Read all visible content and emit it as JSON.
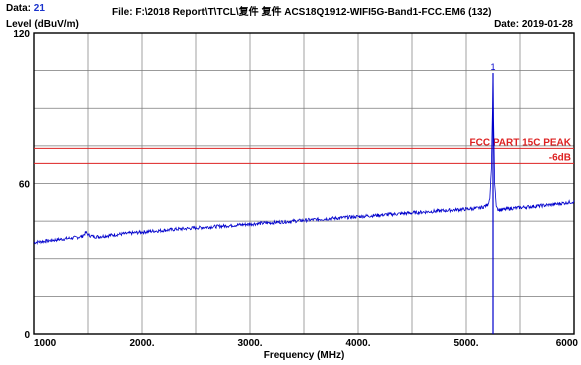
{
  "header": {
    "data_label": "Data:",
    "data_number": "21",
    "file": "File: F:\\2018 Report\\T\\TCL\\复件 复件 ACS18Q1912-WIFI5G-Band1-FCC.EM6  (132)",
    "date": "Date: 2019-01-28"
  },
  "colors": {
    "trace": "#0000cc",
    "limit_line": "#dd2222",
    "grid": "#7a7a7a",
    "data_number": "#1a33cc"
  },
  "chart_data": {
    "type": "line",
    "title": "",
    "ylabel": "Level (dBuV/m)",
    "xlabel": "Frequency (MHz)",
    "xlim": [
      1000,
      6000
    ],
    "ylim": [
      0,
      120
    ],
    "x_tick_labels": [
      "1000",
      "2000.",
      "3000.",
      "4000.",
      "5000.",
      "6000"
    ],
    "x_ticks": [
      1000,
      2000,
      3000,
      4000,
      5000,
      6000
    ],
    "y_tick_labels": [
      "0",
      "60",
      "120"
    ],
    "y_ticks": [
      0,
      60,
      120
    ],
    "grid": true,
    "limit_lines": [
      {
        "name": "FCC PART 15C PEAK",
        "value": 74
      },
      {
        "name": "-6dB",
        "value": 68
      }
    ],
    "marker": {
      "label": "1",
      "x": 5250,
      "y": 104
    },
    "series": [
      {
        "x": [
          1000,
          1100,
          1200,
          1300,
          1400,
          1450,
          1480,
          1500,
          1550,
          1600,
          1700,
          1800,
          1900,
          2000,
          2100,
          2200,
          2300,
          2400,
          2500,
          2600,
          2700,
          2800,
          2900,
          3000,
          3100,
          3200,
          3300,
          3400,
          3500,
          3600,
          3700,
          3800,
          3900,
          4000,
          4100,
          4200,
          4300,
          4400,
          4500,
          4600,
          4700,
          4800,
          4900,
          5000,
          5100,
          5150,
          5200,
          5220,
          5235,
          5245,
          5250,
          5255,
          5265,
          5280,
          5300,
          5350,
          5400,
          5500,
          5600,
          5700,
          5800,
          5900,
          6000
        ],
        "y": [
          36.5,
          37.0,
          37.5,
          38.0,
          38.5,
          39.0,
          40.5,
          39.5,
          38.8,
          38.8,
          39.3,
          39.8,
          40.2,
          40.6,
          41.0,
          41.3,
          41.7,
          42.0,
          42.3,
          42.6,
          42.9,
          43.2,
          43.5,
          43.8,
          44.1,
          44.4,
          44.7,
          45.0,
          45.3,
          45.6,
          45.9,
          46.2,
          46.5,
          46.8,
          47.1,
          47.4,
          47.7,
          48.0,
          48.3,
          48.6,
          48.9,
          49.2,
          49.5,
          49.8,
          50.1,
          50.5,
          51.5,
          54.0,
          66.0,
          90.0,
          104.0,
          86.0,
          60.0,
          51.0,
          49.5,
          49.6,
          50.0,
          50.4,
          50.8,
          51.2,
          51.6,
          52.2,
          52.8
        ]
      }
    ]
  }
}
